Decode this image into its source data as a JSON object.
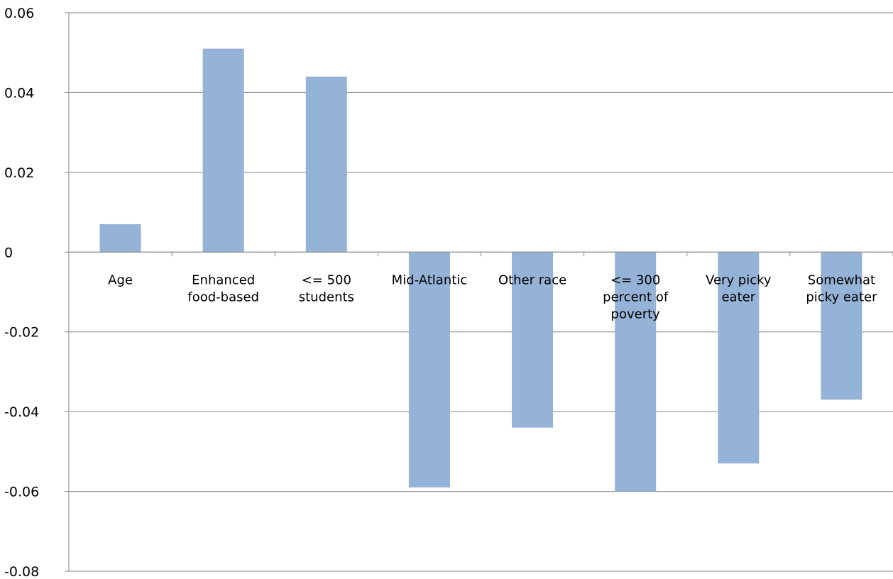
{
  "chart_data": {
    "type": "bar",
    "categories": [
      [
        "Age"
      ],
      [
        "Enhanced",
        "food-based"
      ],
      [
        "<= 500",
        "students"
      ],
      [
        "Mid-Atlantic"
      ],
      [
        "Other race"
      ],
      [
        "<= 300",
        "percent of",
        "poverty"
      ],
      [
        "Very picky",
        "eater"
      ],
      [
        "Somewhat",
        "picky eater"
      ]
    ],
    "values": [
      0.007,
      0.051,
      0.044,
      -0.059,
      -0.044,
      -0.06,
      -0.053,
      -0.037
    ],
    "ylim": [
      -0.08,
      0.06
    ],
    "yticks": [
      -0.08,
      -0.06,
      -0.04,
      -0.02,
      0,
      0.02,
      0.04,
      0.06
    ],
    "ytick_labels": [
      "-0.08",
      "-0.06",
      "-0.04",
      "-0.02",
      "0",
      "0.02",
      "0.04",
      "0.06"
    ],
    "title": "",
    "xlabel": "",
    "ylabel": "",
    "grid": true,
    "legend": "none",
    "bar_color": "#95b3d7",
    "grid_color": "#868686",
    "axis_color": "#868686"
  }
}
